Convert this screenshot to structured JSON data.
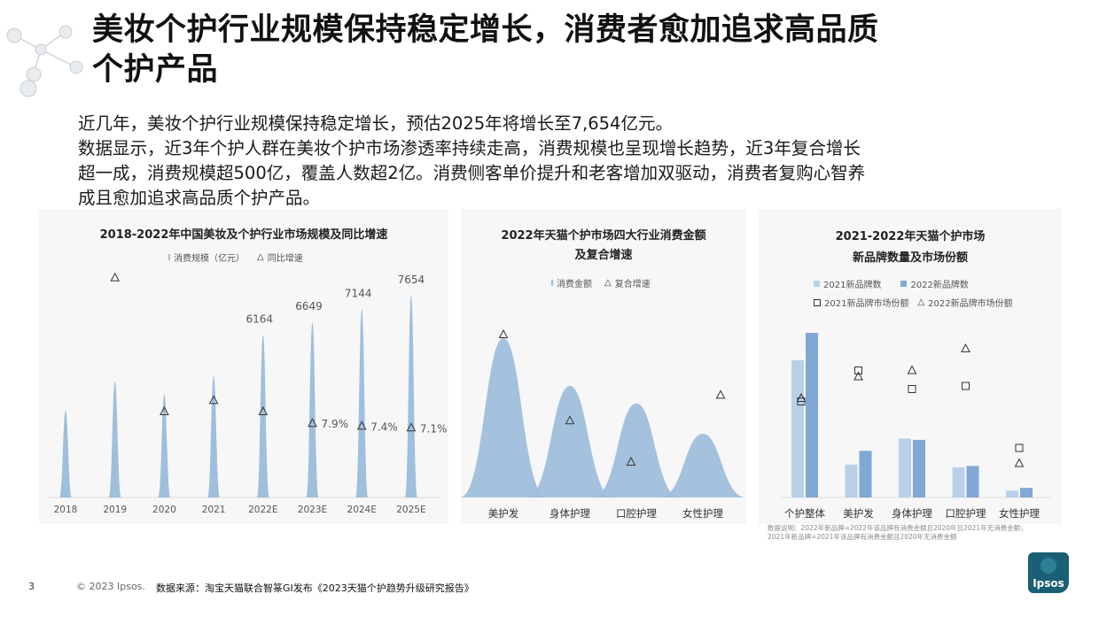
{
  "slide": {
    "title_line1": "美妆个护行业规模保持稳定增长，消费者愈加追求高品质",
    "title_line2": "个护产品",
    "body": [
      "近几年，美妆个护行业规模保持稳定增长，预估2025年将增长至7,654亿元。",
      "数据显示，近3年个护人群在美妆个护市场渗透率持续走高，消费规模也呈现增长趋势，近3年复合增长",
      "超一成，消费规模超500亿，覆盖人数超2亿。消费侧客单价提升和老客增加双驱动，消费者复购心智养",
      "成且愈加追求高品质个护产品。"
    ],
    "note": [
      "数据说明：2022年新品牌=2022年该品牌有消费金额且2020年且2021年无消费金额；",
      "2021年新品牌=2021年该品牌有消费金额且2020年无消费金额"
    ],
    "page_number": "3",
    "copyright": "© 2023 Ipsos.",
    "source": "数据来源：淘宝天猫联合智篆GI发布《2023天猫个护趋势升级研究报告》",
    "logo_text": "Ipsos"
  },
  "chart_data": [
    {
      "type": "area",
      "title": "2018-2022年中国美妆及个护行业市场规模及同比增速",
      "categories": [
        "2018",
        "2019",
        "2020",
        "2021",
        "2022E",
        "2023E",
        "2024E",
        "2025E"
      ],
      "series": [
        {
          "name": "消费规模（亿元）",
          "values": [
            3300,
            4400,
            3900,
            4600,
            6164,
            6649,
            7144,
            7654
          ]
        },
        {
          "name": "同比增速",
          "values": [
            null,
            0.34,
            0.1,
            0.12,
            0.1,
            0.079,
            0.074,
            0.071
          ]
        }
      ],
      "value_labels": [
        "",
        "",
        "",
        "",
        "6164",
        "6649",
        "7144",
        "7654"
      ],
      "rate_labels": [
        "",
        "",
        "",
        "",
        "",
        "7.9%",
        "7.4%",
        "7.1%"
      ],
      "colors": {
        "bar": "#9fbfdc",
        "marker": "#333333"
      }
    },
    {
      "type": "area",
      "title": "2022年天猫个护市场四大行业消费金额及复合增速",
      "title_lines": [
        "2022年天猫个护市场四大行业消费金额",
        "及复合增速"
      ],
      "categories": [
        "美护发",
        "身体护理",
        "口腔护理",
        "女性护理"
      ],
      "series": [
        {
          "name": "消费金额",
          "values": [
            100,
            70,
            59,
            40
          ]
        },
        {
          "name": "复合增速",
          "values": [
            0.45,
            0.18,
            0.05,
            0.26
          ]
        }
      ],
      "colors": {
        "bar": "#9fbfdc",
        "marker": "#333333"
      }
    },
    {
      "type": "bar",
      "title": "2021-2022年天猫个护市场新品牌数量及市场份额",
      "title_lines": [
        "2021-2022年天猫个护市场",
        "新品牌数量及市场份额"
      ],
      "categories": [
        "个护整体",
        "美护发",
        "身体护理",
        "口腔护理",
        "女性护理"
      ],
      "series": [
        {
          "name": "2021新品牌数",
          "values": [
            100,
            24,
            43,
            22,
            5
          ]
        },
        {
          "name": "2022新品牌数",
          "values": [
            120,
            34,
            42,
            23,
            7
          ]
        },
        {
          "name": "2021新品牌市场份额",
          "values": [
            0.39,
            0.49,
            0.43,
            0.44,
            0.24
          ]
        },
        {
          "name": "2022新品牌市场份额",
          "values": [
            0.4,
            0.47,
            0.49,
            0.56,
            0.19
          ]
        }
      ],
      "colors": {
        "s2021": "#b8d1e8",
        "s2022": "#7fa8d4",
        "marker": "#333333"
      }
    }
  ]
}
